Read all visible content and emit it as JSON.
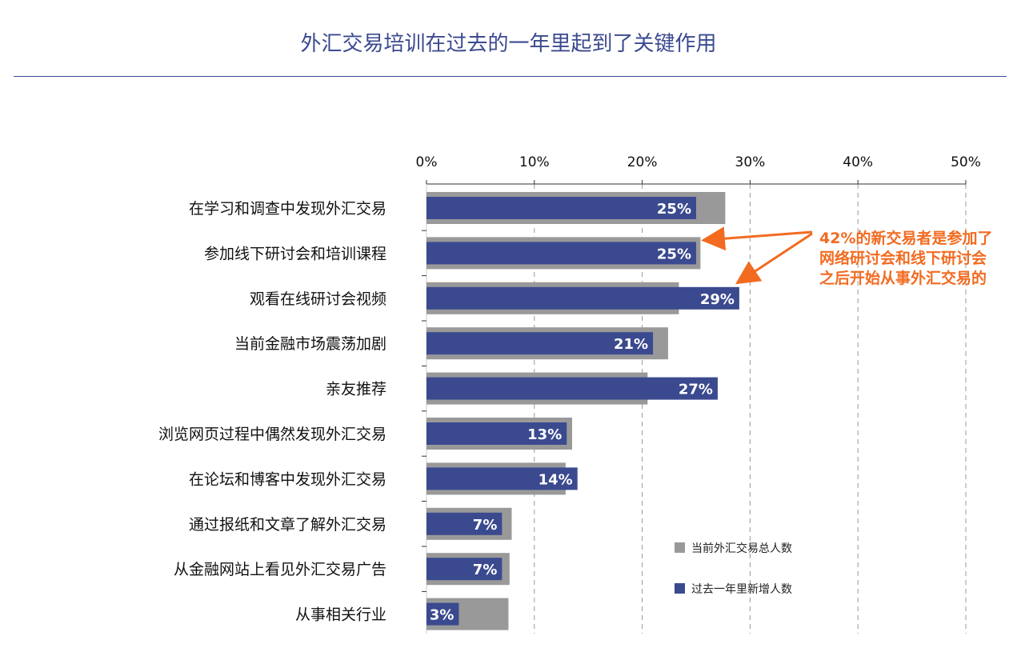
{
  "title": "外汇交易培训在过去的一年里起到了关键作用",
  "annotation": "42%的新交易者是参加了网络研讨会和线下研讨会之后开始从事外汇交易的",
  "colors": {
    "total": "#999999",
    "new": "#3b4a8f",
    "accent": "#f26b21",
    "title": "#3b4a8f"
  },
  "chart_data": {
    "type": "bar",
    "orientation": "horizontal",
    "title": "外汇交易培训在过去的一年里起到了关键作用",
    "xlabel": "",
    "ylabel": "",
    "xlim": [
      0,
      50
    ],
    "xticks": [
      "0%",
      "10%",
      "20%",
      "30%",
      "40%",
      "50%"
    ],
    "grid": true,
    "legend_position": "bottom-right",
    "categories": [
      "在学习和调查中发现外汇交易",
      "参加线下研讨会和培训课程",
      "观看在线研讨会视频",
      "当前金融市场震荡加剧",
      "亲友推荐",
      "浏览网页过程中偶然发现外汇交易",
      "在论坛和博客中发现外汇交易",
      "通过报纸和文章了解外汇交易",
      "从金融网站上看见外汇交易广告",
      "从事相关行业"
    ],
    "series": [
      {
        "name": "当前外汇交易总人数",
        "values": [
          27.7,
          25.4,
          23.4,
          22.4,
          20.5,
          13.5,
          12.9,
          7.9,
          7.7,
          7.6
        ]
      },
      {
        "name": "过去一年里新增人数",
        "values": [
          25,
          25,
          29,
          21,
          27,
          13,
          14,
          7,
          7,
          3
        ],
        "labels": [
          "25%",
          "25%",
          "29%",
          "21%",
          "27%",
          "13%",
          "14%",
          "7%",
          "7%",
          "3%"
        ]
      }
    ]
  }
}
